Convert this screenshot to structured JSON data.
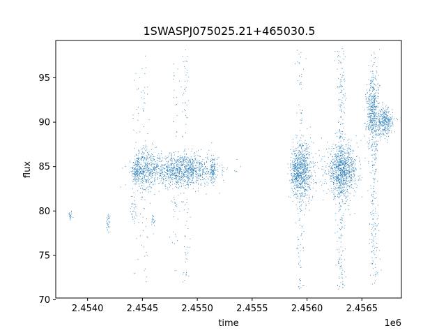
{
  "chart_data": {
    "type": "scatter",
    "title": "1SWASPJ075025.21+465030.5",
    "xlabel": "time",
    "ylabel": "flux",
    "x_offset_label": "1e6",
    "xlim": [
      2.45371,
      2.45686
    ],
    "ylim": [
      70.2,
      99.2
    ],
    "x_ticks": [
      2.454,
      2.4545,
      2.455,
      2.4555,
      2.456,
      2.4565
    ],
    "x_tick_labels": [
      "2.4540",
      "2.4545",
      "2.4550",
      "2.4555",
      "2.4560",
      "2.4565"
    ],
    "y_ticks": [
      70,
      75,
      80,
      85,
      90,
      95
    ],
    "y_tick_labels": [
      "70",
      "75",
      "80",
      "85",
      "90",
      "95"
    ],
    "grid": false,
    "point_color": "#1f77b4",
    "series": [
      {
        "clusters": [
          {
            "x": 2.45384,
            "y": 79.5,
            "dx": 1e-05,
            "dy": 0.3,
            "n": 20
          },
          {
            "x": 2.45419,
            "y": 78.6,
            "dx": 1e-05,
            "dy": 0.6,
            "n": 30
          },
          {
            "x": 2.45442,
            "y": 80.3,
            "dx": 1.5e-05,
            "dy": 1.0,
            "n": 25
          },
          {
            "x": 2.45445,
            "y": 84.6,
            "dx": 2.5e-05,
            "dy": 0.9,
            "n": 160
          },
          {
            "x": 2.45453,
            "y": 84.6,
            "dx": 4.5e-05,
            "dy": 1.3,
            "n": 260
          },
          {
            "x": 2.4546,
            "y": 78.8,
            "dx": 1e-05,
            "dy": 0.5,
            "n": 20
          },
          {
            "x": 2.45485,
            "y": 84.6,
            "dx": 0.00017,
            "dy": 0.9,
            "n": 1100
          },
          {
            "x": 2.45514,
            "y": 84.6,
            "dx": 1.2e-05,
            "dy": 0.7,
            "n": 90
          },
          {
            "x": 2.4559,
            "y": 84.5,
            "dx": 2.5e-05,
            "dy": 1.3,
            "n": 260
          },
          {
            "x": 2.45597,
            "y": 84.5,
            "dx": 4.5e-05,
            "dy": 1.7,
            "n": 520
          },
          {
            "x": 2.45632,
            "y": 84.5,
            "dx": 7e-05,
            "dy": 1.4,
            "n": 900
          },
          {
            "x": 2.4566,
            "y": 90.9,
            "dx": 3e-05,
            "dy": 2.0,
            "n": 420
          },
          {
            "x": 2.45671,
            "y": 90.0,
            "dx": 3.5e-05,
            "dy": 0.8,
            "n": 300
          }
        ],
        "outlier_columns": [
          {
            "x": 2.45444,
            "ymin": 71.8,
            "ymax": 96.5,
            "n": 35
          },
          {
            "x": 2.45452,
            "ymin": 72.0,
            "ymax": 97.8,
            "n": 60
          },
          {
            "x": 2.4548,
            "ymin": 73.0,
            "ymax": 97.0,
            "n": 50
          },
          {
            "x": 2.45489,
            "ymin": 71.7,
            "ymax": 98.2,
            "n": 90
          },
          {
            "x": 2.45594,
            "ymin": 71.2,
            "ymax": 98.2,
            "n": 130
          },
          {
            "x": 2.45631,
            "ymin": 71.2,
            "ymax": 98.3,
            "n": 260
          },
          {
            "x": 2.45661,
            "ymin": 71.7,
            "ymax": 98.3,
            "n": 240
          }
        ]
      }
    ]
  }
}
